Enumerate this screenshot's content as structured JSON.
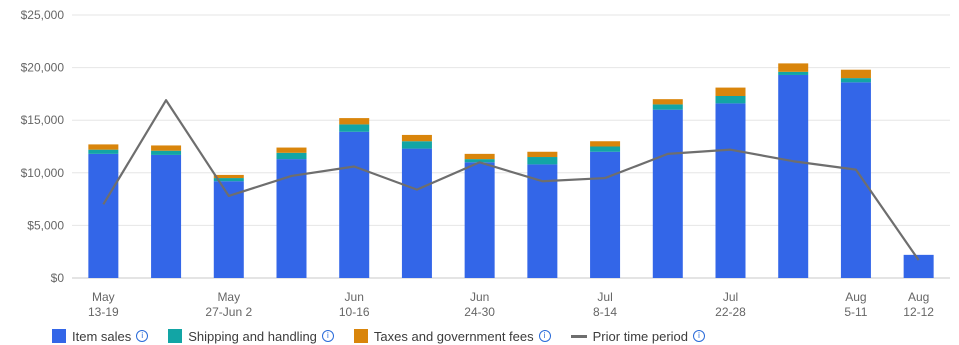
{
  "colors": {
    "item_sales": "#3366e8",
    "shipping": "#12a5a5",
    "taxes": "#d9850b",
    "prior": "#6e6e6e",
    "grid": "#e6e6e6",
    "axis_text": "#666666"
  },
  "chart_data": {
    "type": "bar",
    "stacked": true,
    "ylim": [
      0,
      25000
    ],
    "yticks": [
      "$0",
      "$5,000",
      "$10,000",
      "$15,000",
      "$20,000",
      "$25,000"
    ],
    "ytick_values": [
      0,
      5000,
      10000,
      15000,
      20000,
      25000
    ],
    "categories": [
      [
        "May",
        "13-19"
      ],
      [
        "",
        ""
      ],
      [
        "May",
        "27-Jun 2"
      ],
      [
        "",
        ""
      ],
      [
        "Jun",
        "10-16"
      ],
      [
        "",
        ""
      ],
      [
        "Jun",
        "24-30"
      ],
      [
        "",
        ""
      ],
      [
        "Jul",
        "8-14"
      ],
      [
        "",
        ""
      ],
      [
        "Jul",
        "22-28"
      ],
      [
        "",
        ""
      ],
      [
        "Aug",
        "5-11"
      ],
      [
        "Aug",
        "12-12"
      ]
    ],
    "series": [
      {
        "name": "Item sales",
        "key": "item_sales",
        "values": [
          11800,
          11700,
          9200,
          11300,
          13900,
          12300,
          11000,
          10800,
          12000,
          16000,
          16600,
          19300,
          18600,
          2200
        ]
      },
      {
        "name": "Shipping and handling",
        "key": "shipping",
        "values": [
          400,
          400,
          300,
          600,
          700,
          700,
          300,
          700,
          500,
          500,
          700,
          300,
          400,
          0
        ]
      },
      {
        "name": "Taxes and government fees",
        "key": "taxes",
        "values": [
          500,
          500,
          300,
          500,
          600,
          600,
          500,
          500,
          500,
          500,
          800,
          800,
          800,
          0
        ]
      }
    ],
    "prior_period": {
      "name": "Prior time period",
      "values": [
        7000,
        16900,
        7800,
        9700,
        10600,
        8400,
        11000,
        9200,
        9500,
        11800,
        12200,
        11100,
        10300,
        1700
      ]
    }
  },
  "legend": [
    {
      "label": "Item sales",
      "key": "item_sales",
      "kind": "box"
    },
    {
      "label": "Shipping and handling",
      "key": "shipping",
      "kind": "box"
    },
    {
      "label": "Taxes and government fees",
      "key": "taxes",
      "kind": "box"
    },
    {
      "label": "Prior time period",
      "key": "prior",
      "kind": "line"
    }
  ],
  "info_glyph": "i"
}
